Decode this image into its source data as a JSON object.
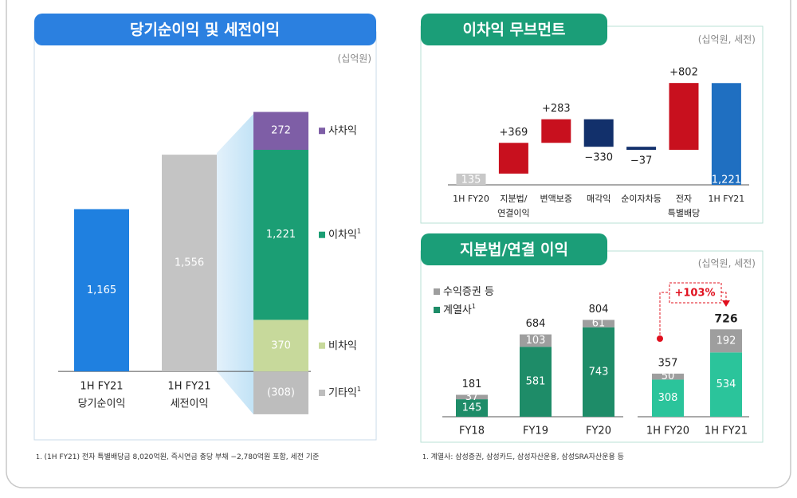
{
  "chart_data": [
    {
      "type": "stacked_bar",
      "title": "당기순이익 및 세전이익",
      "unit": "(십억원)",
      "categories": [
        [
          "1H FY21",
          "당기순이익"
        ],
        [
          "1H FY21",
          "세전이익"
        ],
        null
      ],
      "series": [
        {
          "values": [
            1165,
            null,
            null
          ],
          "value_labels": [
            "1,165",
            null,
            null
          ],
          "color": "#1f80e0"
        },
        {
          "values": [
            null,
            1556,
            null
          ],
          "value_labels": [
            null,
            "1,556",
            null
          ],
          "color": "#c4c4c4"
        },
        {
          "name": "기타익",
          "note": "1",
          "values": [
            null,
            null,
            -308
          ],
          "value_labels": [
            null,
            null,
            "(308)"
          ],
          "color": "#bdbdbd"
        },
        {
          "name": "비차익",
          "values": [
            null,
            null,
            370
          ],
          "color": "#c7d99b"
        },
        {
          "name": "이차익",
          "note": "1",
          "values": [
            null,
            null,
            1221
          ],
          "value_labels": [
            null,
            null,
            "1,221"
          ],
          "color": "#1b9e74"
        },
        {
          "name": "사차익",
          "values": [
            null,
            null,
            272
          ],
          "color": "#7e5ea6"
        }
      ],
      "ylim": [
        -400,
        1900
      ],
      "footnote": {
        "mark": "1.",
        "text": "(1H FY21) 전자 특별배당금 8,020억원, 즉시연금 충당 부채 −2,780억원 포함, 세전 기준"
      }
    },
    {
      "type": "waterfall",
      "title": "이차익 무브먼트",
      "unit": "(십억원, 세전)",
      "categories": [
        [
          "1H FY20"
        ],
        [
          "지분법/",
          "연결이익"
        ],
        [
          "변액보증"
        ],
        [
          "매각익"
        ],
        [
          "순이자차등"
        ],
        [
          "전자",
          "특별배당"
        ],
        [
          "1H FY21"
        ]
      ],
      "values": [
        135,
        369,
        283,
        -330,
        -37,
        802,
        1221
      ],
      "value_labels": [
        "135",
        "+369",
        "+283",
        "−330",
        "−37",
        "+802",
        "1,221"
      ],
      "measure": [
        "absolute",
        "relative",
        "relative",
        "relative",
        "relative",
        "relative",
        "total"
      ],
      "colors": [
        "#c8c8c8",
        "#c8101e",
        "#c8101e",
        "#12306b",
        "#12306b",
        "#c8101e",
        "#1f6fc1"
      ],
      "ylim": [
        0,
        1300
      ]
    },
    {
      "type": "stacked_bar",
      "title": "지분법/연결 이익",
      "unit": "(십억원, 세전)",
      "categories": [
        "FY18",
        "FY19",
        "FY20",
        "1H FY20",
        "1H FY21"
      ],
      "series": [
        {
          "name": "계열사",
          "note": "1",
          "color": "#1e8c68",
          "colors": [
            "#1e8c68",
            "#1e8c68",
            "#1e8c68",
            "#2bc49b",
            "#2bc49b"
          ],
          "values": [
            145,
            581,
            743,
            308,
            534
          ]
        },
        {
          "name": "수익증권 등",
          "color": "#9e9e9e",
          "values": [
            37,
            103,
            61,
            50,
            192
          ]
        }
      ],
      "totals": [
        181,
        684,
        804,
        357,
        726
      ],
      "annotation": "+103%",
      "ylim": [
        0,
        900
      ],
      "footnote": {
        "mark": "1.",
        "text": "계열사: 삼성증권, 삼성카드, 삼성자산운용, 삼성SRA자산운용 등"
      }
    }
  ]
}
